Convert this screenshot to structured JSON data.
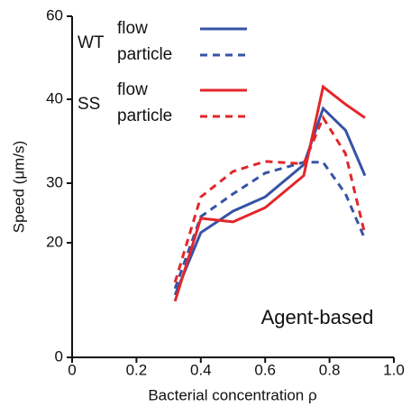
{
  "chart_data": {
    "type": "line",
    "xlabel": "Bacterial concentration ρ",
    "ylabel": "Speed (μm/s)",
    "annotation": "Agent-based",
    "xlim": [
      0,
      1.0
    ],
    "xticks": [
      0,
      0.2,
      0.4,
      0.6,
      0.8,
      {
        "value": 1.0,
        "label": "1.0"
      }
    ],
    "ylim": [
      0,
      60
    ],
    "yticks": [
      0,
      20,
      30,
      40,
      60
    ],
    "legend_groups": [
      "WT",
      "SS"
    ],
    "series": [
      {
        "name": "flow",
        "color": "#3653a5",
        "linestyle": "solid",
        "x": [
          0.32,
          0.4,
          0.5,
          0.6,
          0.72,
          0.78,
          0.85,
          0.91
        ],
        "values": [
          10.9,
          21.7,
          25.3,
          27.7,
          32.2,
          38.9,
          36.3,
          30.9
        ]
      },
      {
        "name": "particle",
        "color": "#3653a5",
        "linestyle": "dashed",
        "x": [
          0.32,
          0.4,
          0.5,
          0.6,
          0.72,
          0.78,
          0.85,
          0.91
        ],
        "values": [
          12.0,
          24.4,
          28.2,
          31.2,
          32.5,
          32.5,
          28.2,
          20.6
        ]
      },
      {
        "name": "flow",
        "color": "#e3262b",
        "linestyle": "solid",
        "x": [
          0.32,
          0.4,
          0.5,
          0.6,
          0.72,
          0.78,
          0.85,
          0.91
        ],
        "values": [
          9.8,
          24.1,
          23.5,
          25.9,
          30.9,
          43.0,
          39.4,
          37.8
        ]
      },
      {
        "name": "particle",
        "color": "#e3262b",
        "linestyle": "dashed",
        "x": [
          0.32,
          0.4,
          0.5,
          0.6,
          0.72,
          0.78,
          0.85,
          0.91
        ],
        "values": [
          13.1,
          27.7,
          31.4,
          32.6,
          32.3,
          37.8,
          33.5,
          21.4
        ]
      }
    ]
  }
}
